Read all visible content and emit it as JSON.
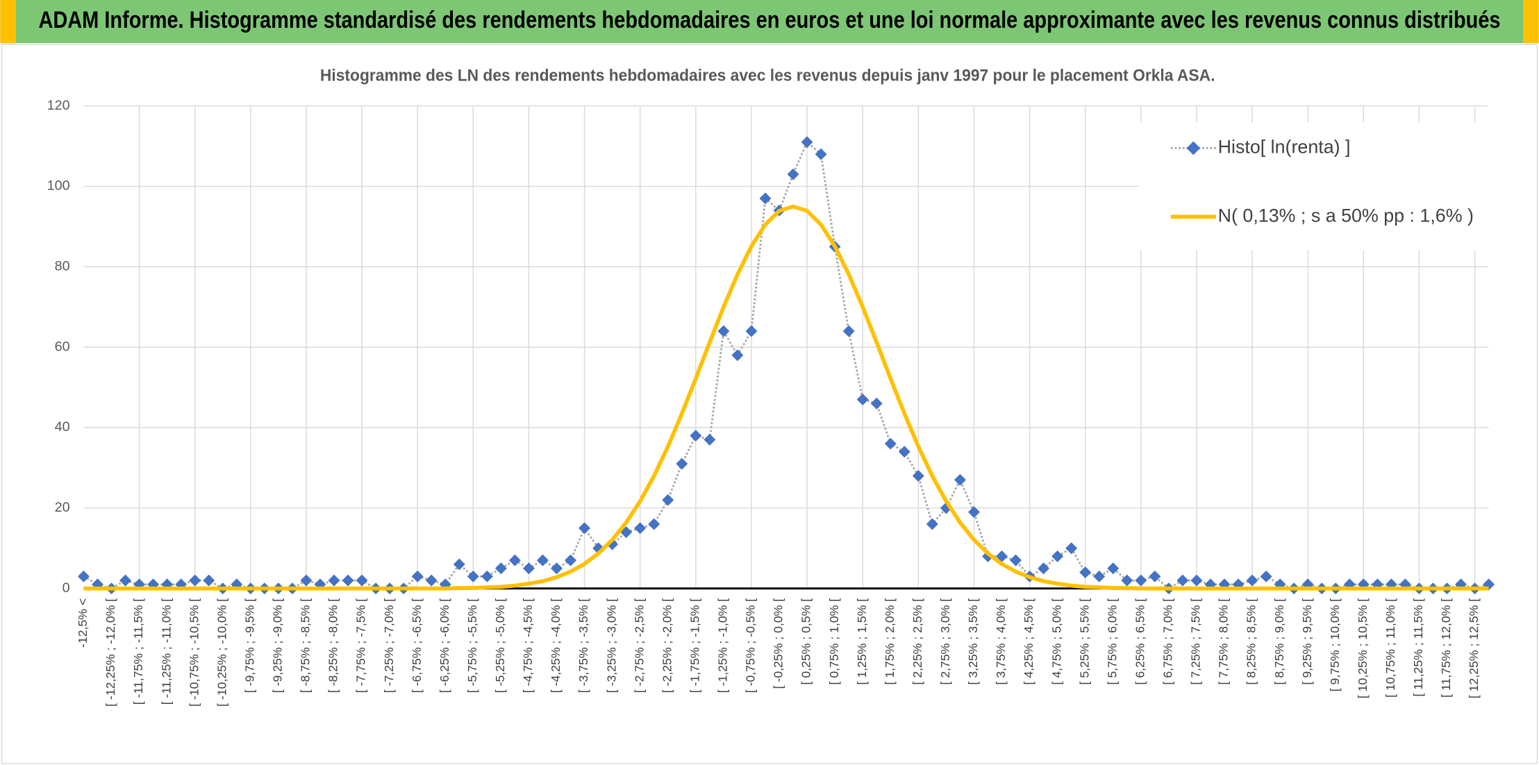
{
  "header": "ADAM Informe. Histogramme standardisé des rendements hebdomadaires en euros et une loi normale approximante avec les revenus connus distribués",
  "chart_data": {
    "type": "line",
    "title": "Histogramme des LN des rendements hebdomadaires avec les revenus depuis janv 1997 pour le placement Orkla ASA.",
    "categories": [
      "-12,5% <",
      null,
      "[ -12,25% ; -12,0% [",
      null,
      "[ -11,75% ; -11,5% [",
      null,
      "[ -11,25% ; -11,0% [",
      null,
      "[ -10,75% ; -10,5% [",
      null,
      "[ -10,25% ; -10,0% [",
      null,
      "[ -9,75% ; -9,5% [",
      null,
      "[ -9,25% ; -9,0% [",
      null,
      "[ -8,75% ; -8,5% [",
      null,
      "[ -8,25% ; -8,0% [",
      null,
      "[ -7,75% ; -7,5% [",
      null,
      "[ -7,25% ; -7,0% [",
      null,
      "[ -6,75% ; -6,5% [",
      null,
      "[ -6,25% ; -6,0% [",
      null,
      "[ -5,75% ; -5,5% [",
      null,
      "[ -5,25% ; -5,0% [",
      null,
      "[ -4,75% ; -4,5% [",
      null,
      "[ -4,25% ; -4,0% [",
      null,
      "[ -3,75% ; -3,5% [",
      null,
      "[ -3,25% ; -3,0% [",
      null,
      "[ -2,75% ; -2,5% [",
      null,
      "[ -2,25% ; -2,0% [",
      null,
      "[ -1,75% ; -1,5% [",
      null,
      "[ -1,25% ; -1,0% [",
      null,
      "[ -0,75% ; -0,5% [",
      null,
      "[ -0,25% ; 0,0% [",
      null,
      "[ 0,25% ; 0,5% [",
      null,
      "[ 0,75% ; 1,0% [",
      null,
      "[ 1,25% ; 1,5% [",
      null,
      "[ 1,75% ; 2,0% [",
      null,
      "[ 2,25% ; 2,5% [",
      null,
      "[ 2,75% ; 3,0% [",
      null,
      "[ 3,25% ; 3,5% [",
      null,
      "[ 3,75% ; 4,0% [",
      null,
      "[ 4,25% ; 4,5% [",
      null,
      "[ 4,75% ; 5,0% [",
      null,
      "[ 5,25% ; 5,5% [",
      null,
      "[ 5,75% ; 6,0% [",
      null,
      "[ 6,25% ; 6,5% [",
      null,
      "[ 6,75% ; 7,0% [",
      null,
      "[ 7,25% ; 7,5% [",
      null,
      "[ 7,75% ; 8,0% [",
      null,
      "[ 8,25% ; 8,5% [",
      null,
      "[ 8,75% ; 9,0% [",
      null,
      "[ 9,25% ; 9,5% [",
      null,
      "[ 9,75% ; 10,0% [",
      null,
      "[ 10,25% ; 10,5% [",
      null,
      "[ 10,75% ; 11,0% [",
      null,
      "[ 11,25% ; 11,5% [",
      null,
      "[ 11,75% ; 12,0% [",
      null,
      "[ 12,25% ; 12,5% [",
      null
    ],
    "series": [
      {
        "name": "Histo[ ln(renta) ]",
        "color": "#4472c4",
        "line_color": "#a6a6a6",
        "style": "dotted-markers",
        "values": [
          3,
          1,
          0,
          2,
          1,
          1,
          1,
          1,
          2,
          2,
          0,
          1,
          0,
          0,
          0,
          0,
          2,
          1,
          2,
          2,
          2,
          0,
          0,
          0,
          3,
          2,
          1,
          6,
          3,
          3,
          5,
          7,
          5,
          7,
          5,
          7,
          15,
          10,
          11,
          14,
          15,
          16,
          22,
          31,
          38,
          37,
          64,
          58,
          64,
          97,
          94,
          103,
          111,
          108,
          85,
          64,
          47,
          46,
          36,
          34,
          28,
          16,
          20,
          27,
          19,
          8,
          8,
          7,
          3,
          5,
          8,
          10,
          4,
          3,
          5,
          2,
          2,
          3,
          0,
          2,
          2,
          1,
          1,
          1,
          2,
          3,
          1,
          0,
          1,
          0,
          0,
          1,
          1,
          1,
          1,
          1,
          0,
          0,
          0,
          1,
          0,
          1
        ]
      },
      {
        "name": "N( 0,13% ; s a 50% pp : 1,6% )",
        "color": "#ffc000",
        "style": "solid",
        "values": [
          0,
          0,
          0,
          0,
          0,
          0,
          0,
          0,
          0,
          0,
          0,
          0,
          0,
          0,
          0,
          0,
          0,
          0,
          0,
          0,
          0,
          0,
          0,
          0,
          0,
          0,
          0,
          0.1,
          0.1,
          0.3,
          0.4,
          0.7,
          1.2,
          1.8,
          2.8,
          4.2,
          6.1,
          8.7,
          12.1,
          16.4,
          21.7,
          28.0,
          35.3,
          43.5,
          52.2,
          61.2,
          70.0,
          78.1,
          85.1,
          90.5,
          93.9,
          95,
          93.9,
          90.5,
          85.1,
          78.1,
          70.0,
          61.2,
          52.2,
          43.5,
          35.3,
          28.0,
          21.7,
          16.4,
          12.1,
          8.7,
          6.1,
          4.2,
          2.8,
          1.8,
          1.2,
          0.7,
          0.4,
          0.3,
          0.1,
          0.1,
          0,
          0,
          0,
          0,
          0,
          0,
          0,
          0,
          0,
          0,
          0,
          0,
          0,
          0,
          0,
          0,
          0,
          0,
          0,
          0,
          0,
          0,
          0,
          0,
          0,
          0
        ]
      }
    ],
    "ylim": [
      0,
      120
    ],
    "yticks": [
      0,
      20,
      40,
      60,
      80,
      100,
      120
    ],
    "grid": true,
    "legend": "top-right"
  }
}
